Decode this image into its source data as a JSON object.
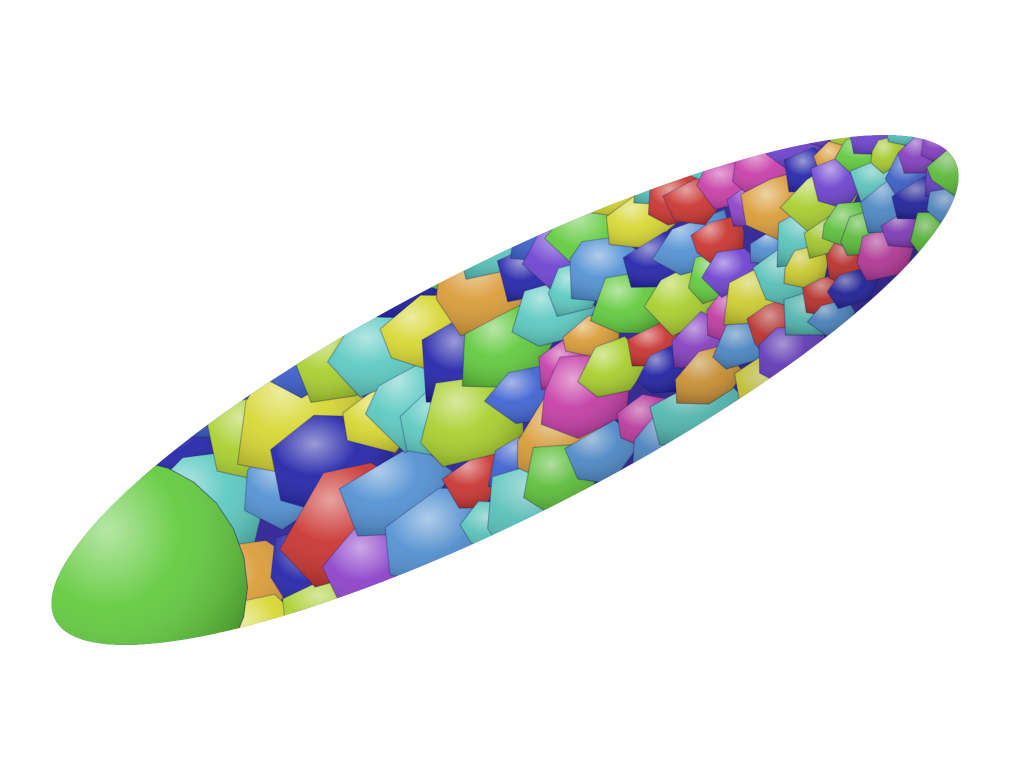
{
  "scene": {
    "subject": "segmented-ellipsoid-cells",
    "background_color": "#ffffff",
    "palette": [
      {
        "name": "green",
        "hex": "#5fc93a"
      },
      {
        "name": "lime",
        "hex": "#a7cf2a"
      },
      {
        "name": "yellow",
        "hex": "#d6d62e"
      },
      {
        "name": "orange",
        "hex": "#d99a34"
      },
      {
        "name": "red",
        "hex": "#c8302c"
      },
      {
        "name": "magenta",
        "hex": "#c63aa6"
      },
      {
        "name": "purple",
        "hex": "#8a3ec8"
      },
      {
        "name": "violet",
        "hex": "#6b3fd0"
      },
      {
        "name": "blue",
        "hex": "#3b5fcf"
      },
      {
        "name": "navy",
        "hex": "#2020a8"
      },
      {
        "name": "teal",
        "hex": "#58c8c0"
      },
      {
        "name": "steel",
        "hex": "#4f8fd2"
      }
    ]
  }
}
